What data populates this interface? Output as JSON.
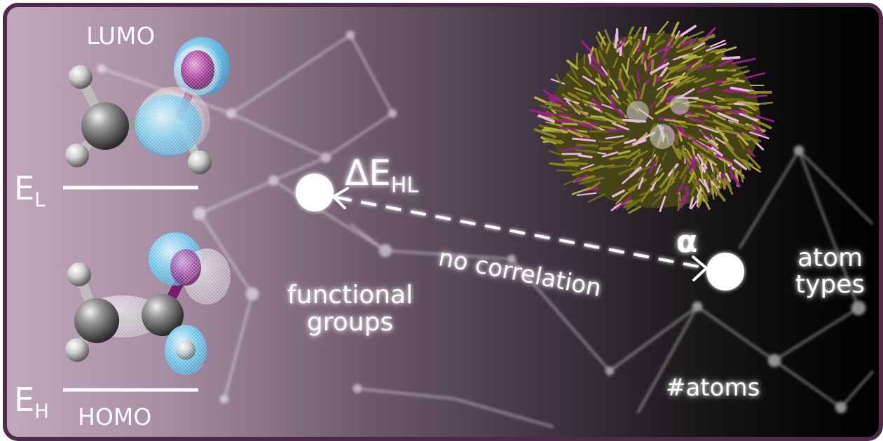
{
  "labels": {
    "lumo": "LUMO",
    "homo": "HOMO",
    "e_l": "E",
    "e_l_sub": "L",
    "e_h": "E",
    "e_h_sub": "H",
    "delta_ehl": "ΔE",
    "delta_ehl_sub": "HL",
    "alpha": "α",
    "no_correlation": "no correlation",
    "functional_groups_line1": "functional",
    "functional_groups_line2": "groups",
    "atom_types_line1": "atom",
    "atom_types_line2": "types",
    "n_atoms": "#atoms"
  },
  "colors": {
    "frame": "#4f2a48",
    "orbital_cyan": "#5fc9f2",
    "orbital_magenta": "#8a1e7e",
    "vector_olive": "#8a8520",
    "vector_pink": "#e8b8e0",
    "vector_magenta": "#9b1f8a"
  },
  "icons": [
    "lumo-molecule-icon",
    "homo-molecule-icon",
    "molecule-vector-field-icon",
    "network-background-icon"
  ]
}
